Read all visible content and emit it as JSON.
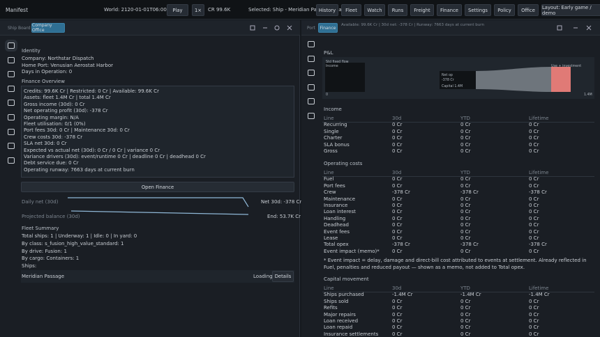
{
  "topbar": {
    "title": "Manifest",
    "world": "World: 2120-01-01T06:00:00",
    "play": "Play",
    "speed": "1×",
    "credits": "CR 99.6K",
    "selected": "Selected: Ship - Meridian Passage (loading)",
    "buttons": [
      "History",
      "Fleet",
      "Watch",
      "Runs",
      "Freight",
      "Finance",
      "Settings",
      "Policy",
      "Office",
      "Layout: Early game / demo"
    ]
  },
  "left_panel": {
    "tabs": [
      "Ship Board",
      "Company Office"
    ],
    "identity": {
      "heading": "Identity",
      "lines": [
        "Company: Northstar Dispatch",
        "Home Port: Venusian Aerostat Harbor",
        "Days in Operation: 0"
      ]
    },
    "finance_overview": {
      "heading": "Finance Overview",
      "lines": [
        "Credits: 99.6K Cr | Restricted: 0 Cr | Available: 99.6K Cr",
        "Assets: fleet 1.4M Cr | total 1.4M Cr",
        "Gross income (30d): 0 Cr",
        "Net operating profit (30d): -378 Cr",
        "Operating margin: N/A",
        "Fleet utilisation: 0/1 (0%)",
        "Port fees 30d: 0 Cr | Maintenance 30d: 0 Cr",
        "Crew costs 30d: -378 Cr",
        "SLA net 30d: 0 Cr",
        "Expected vs actual net (30d): 0 Cr / 0 Cr | variance 0 Cr",
        "Variance drivers (30d): event/runtime 0 Cr | deadline 0 Cr | deadhead 0 Cr",
        "Debt service due: 0 Cr",
        "Operating runway: 7663 days at current burn"
      ]
    },
    "open_finance": "Open Finance",
    "sparklines": [
      {
        "label": "Daily net (30d)",
        "value": "Net 30d: -378 Cr"
      },
      {
        "label": "Projected balance (30d)",
        "value": "End: 53.7K Cr"
      }
    ],
    "fleet_summary": {
      "heading": "Fleet Summary",
      "lines": [
        "Total ships: 1 | Underway: 1 | Idle: 0 | In yard: 0",
        "By class: s_fusion_high_value_standard: 1",
        "By drive: Fusion: 1",
        "By cargo: Containers: 1",
        "Ships:"
      ]
    },
    "ship_row": {
      "name": "Meridian Passage",
      "status": "Loading",
      "button": "Details"
    }
  },
  "right_panel": {
    "tabs": [
      "Port",
      "Finance"
    ],
    "status": "Available: 99.6K Cr | 30d net: -378 Cr | Runway: 7663 days at current burn",
    "heading": "P&L",
    "sankey": {
      "labels": [
        "Std fixed flow",
        "Income",
        "Net op",
        "-378 Cr",
        "Capital 1.4M",
        "Use + investment",
        "0",
        "1.4M"
      ]
    },
    "sections": [
      {
        "heading": "Income",
        "columns": [
          "Line",
          "30d",
          "YTD",
          "Lifetime"
        ],
        "rows": [
          [
            "Recurring",
            "0 Cr",
            "0 Cr",
            "0 Cr"
          ],
          [
            "Single",
            "0 Cr",
            "0 Cr",
            "0 Cr"
          ],
          [
            "Charter",
            "0 Cr",
            "0 Cr",
            "0 Cr"
          ],
          [
            "SLA bonus",
            "0 Cr",
            "0 Cr",
            "0 Cr"
          ],
          [
            "Gross",
            "0 Cr",
            "0 Cr",
            "0 Cr"
          ]
        ]
      },
      {
        "heading": "Operating costs",
        "columns": [
          "Line",
          "30d",
          "YTD",
          "Lifetime"
        ],
        "rows": [
          [
            "Fuel",
            "0 Cr",
            "0 Cr",
            "0 Cr"
          ],
          [
            "Port fees",
            "0 Cr",
            "0 Cr",
            "0 Cr"
          ],
          [
            "Crew",
            "-378 Cr",
            "-378 Cr",
            "-378 Cr"
          ],
          [
            "Maintenance",
            "0 Cr",
            "0 Cr",
            "0 Cr"
          ],
          [
            "Insurance",
            "0 Cr",
            "0 Cr",
            "0 Cr"
          ],
          [
            "Loan interest",
            "0 Cr",
            "0 Cr",
            "0 Cr"
          ],
          [
            "Handling",
            "0 Cr",
            "0 Cr",
            "0 Cr"
          ],
          [
            "Deadhead",
            "0 Cr",
            "0 Cr",
            "0 Cr"
          ],
          [
            "Event fees",
            "0 Cr",
            "0 Cr",
            "0 Cr"
          ],
          [
            "Lease",
            "0 Cr",
            "0 Cr",
            "0 Cr"
          ],
          [
            "Total opex",
            "-378 Cr",
            "-378 Cr",
            "-378 Cr"
          ],
          [
            "Event impact (memo)*",
            "0 Cr",
            "0 Cr",
            "0 Cr"
          ]
        ],
        "note": "* Event impact = delay, damage and direct-bill cost attributed to events at settlement. Already reflected in Fuel, penalties and reduced payout — shown as a memo, not added to Total opex."
      },
      {
        "heading": "Capital movement",
        "columns": [
          "Line",
          "30d",
          "YTD",
          "Lifetime"
        ],
        "rows": [
          [
            "Ships purchased",
            "-1.4M Cr",
            "-1.4M Cr",
            "-1.4M Cr"
          ],
          [
            "Ships sold",
            "0 Cr",
            "0 Cr",
            "0 Cr"
          ],
          [
            "Refits",
            "0 Cr",
            "0 Cr",
            "0 Cr"
          ],
          [
            "Major repairs",
            "0 Cr",
            "0 Cr",
            "0 Cr"
          ],
          [
            "Loan received",
            "0 Cr",
            "0 Cr",
            "0 Cr"
          ],
          [
            "Loan repaid",
            "0 Cr",
            "0 Cr",
            "0 Cr"
          ],
          [
            "Insurance settlements",
            "0 Cr",
            "0 Cr",
            "0 Cr"
          ]
        ]
      }
    ]
  }
}
